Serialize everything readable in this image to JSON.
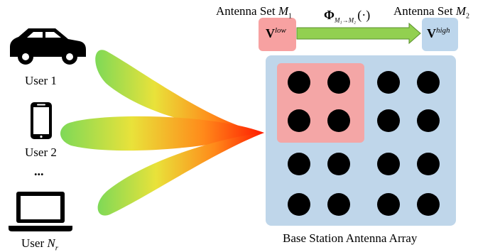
{
  "users": [
    {
      "label": "User 1",
      "device": "car-icon"
    },
    {
      "label": "User 2",
      "device": "smartphone-icon"
    },
    {
      "label_prefix": "User ",
      "label_symbol": "N",
      "label_sub": "r",
      "device": "laptop-icon"
    }
  ],
  "ellipsis": "...",
  "antenna_set_1": {
    "label": "Antenna Set ",
    "symbol": "M",
    "sub": "1"
  },
  "antenna_set_2": {
    "label": "Antenna Set ",
    "symbol": "M",
    "sub": "2"
  },
  "v_low": {
    "base": "V",
    "sup": "low"
  },
  "v_high": {
    "base": "V",
    "sup": "high"
  },
  "mapping": {
    "base": "Φ",
    "sub": "M₁→M₂",
    "arg": "(·)"
  },
  "array_label": "Base Station Antenna Array",
  "array": {
    "rows": 4,
    "cols": 4,
    "highlight_rows": 2,
    "highlight_cols": 2
  },
  "colors": {
    "array_bg": "#bfd6ea",
    "subset_bg": "#f4a6a6",
    "v_low_bg": "#f7a1a1",
    "v_high_bg": "#bdd6ec",
    "arrow_fill": "#92d050",
    "beam_core": "#ff1a00",
    "beam_tip": "#7ed957",
    "antenna": "#000000"
  }
}
